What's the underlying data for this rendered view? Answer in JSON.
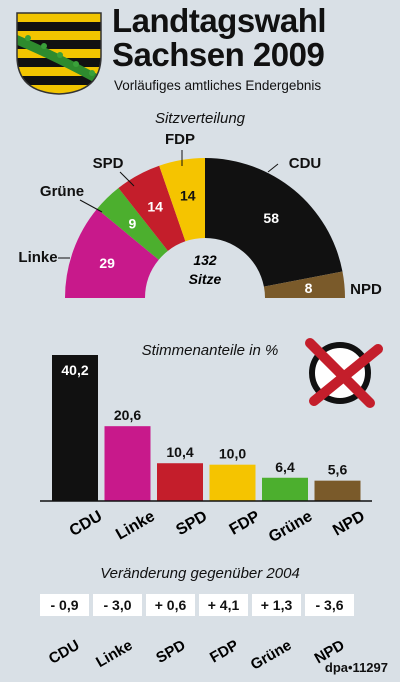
{
  "header": {
    "title_line1": "Landtagswahl",
    "title_line2": "Sachsen 2009",
    "subtitle": "Vorläufiges amtliches Endergebnis"
  },
  "colors": {
    "CDU": "#111111",
    "Linke": "#c8198b",
    "SPD": "#c41e2b",
    "FDP": "#f5c400",
    "Grüne": "#4caf2e",
    "NPD": "#7a5a2a"
  },
  "chart_data": [
    {
      "type": "pie",
      "title": "Sitzverteilung",
      "center_label": "132",
      "center_sublabel": "Sitze",
      "order": [
        "Linke",
        "Grüne",
        "SPD",
        "FDP",
        "CDU",
        "NPD"
      ],
      "values": [
        29,
        9,
        14,
        14,
        58,
        8
      ]
    },
    {
      "type": "bar",
      "title": "Stimmenanteile in %",
      "categories": [
        "CDU",
        "Linke",
        "SPD",
        "FDP",
        "Grüne",
        "NPD"
      ],
      "values": [
        "40,2",
        "20,6",
        "10,4",
        "10,0",
        "6,4",
        "5,6"
      ]
    },
    {
      "type": "table",
      "title": "Veränderung gegenüber 2004",
      "categories": [
        "CDU",
        "Linke",
        "SPD",
        "FDP",
        "Grüne",
        "NPD"
      ],
      "values": [
        "- 0,9",
        "- 3,0",
        "+ 0,6",
        "+ 4,1",
        "+ 1,3",
        "- 3,6"
      ]
    }
  ],
  "credit": "dpa•11297"
}
